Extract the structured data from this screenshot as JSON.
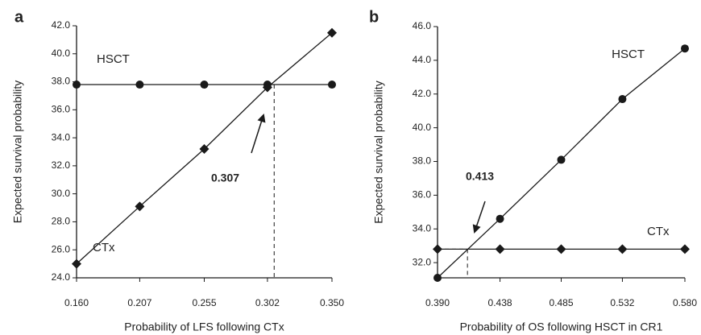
{
  "chart_data": [
    {
      "type": "line",
      "panel_label": "a",
      "x_label": "Probability of LFS following CTx",
      "y_label": "Expected survival probability",
      "x": [
        0.16,
        0.207,
        0.255,
        0.302,
        0.35
      ],
      "series": [
        {
          "name": "HSCT",
          "color": "#1a1a1a",
          "marker": "circle",
          "values": [
            37.8,
            37.8,
            37.8,
            37.8,
            37.8
          ]
        },
        {
          "name": "CTx",
          "color": "#1a1a1a",
          "marker": "diamond",
          "values": [
            25.0,
            29.1,
            33.2,
            37.6,
            41.5
          ]
        }
      ],
      "threshold": 0.307,
      "xlim": [
        0.16,
        0.35
      ],
      "xticks": [
        {
          "value": 0.16,
          "label": "0.160"
        },
        0.207,
        0.255,
        0.302,
        {
          "value": 0.35,
          "label": "0.350"
        }
      ],
      "ylim": [
        24,
        42
      ],
      "yticks": [
        {
          "value": 24,
          "label": "24.0"
        },
        {
          "value": 26,
          "label": "26.0"
        },
        {
          "value": 28,
          "label": "28.0"
        },
        {
          "value": 30,
          "label": "30.0"
        },
        {
          "value": 32,
          "label": "32.0"
        },
        {
          "value": 34,
          "label": "34.0"
        },
        {
          "value": 36,
          "label": "36.0"
        },
        {
          "value": 38,
          "label": "38.0"
        },
        {
          "value": 40,
          "label": "40.0"
        },
        {
          "value": 42,
          "label": "42.0"
        }
      ]
    },
    {
      "type": "line",
      "panel_label": "b",
      "x_label": "Probability of OS following HSCT in CR1",
      "y_label": "Expected survival probability",
      "x": [
        0.39,
        0.438,
        0.485,
        0.532,
        0.58
      ],
      "series": [
        {
          "name": "HSCT",
          "color": "#1a1a1a",
          "marker": "circle",
          "values": [
            31.1,
            34.6,
            38.1,
            41.7,
            44.7
          ]
        },
        {
          "name": "CTx",
          "color": "#1a1a1a",
          "marker": "diamond",
          "values": [
            32.8,
            32.8,
            32.8,
            32.8,
            32.8
          ]
        }
      ],
      "threshold": 0.413,
      "xlim": [
        0.39,
        0.58
      ],
      "xticks": [
        {
          "value": 0.39,
          "label": "0.390"
        },
        0.438,
        0.485,
        0.532,
        {
          "value": 0.58,
          "label": "0.580"
        }
      ],
      "ylim": [
        31.1,
        46
      ],
      "yticks": [
        {
          "value": 32,
          "label": "32.0"
        },
        {
          "value": 34,
          "label": "34.0"
        },
        {
          "value": 36,
          "label": "36.0"
        },
        {
          "value": 38,
          "label": "38.0"
        },
        {
          "value": 40,
          "label": "40.0"
        },
        {
          "value": 42,
          "label": "42.0"
        },
        {
          "value": 44,
          "label": "44.0"
        },
        {
          "value": 46,
          "label": "46.0"
        }
      ]
    }
  ]
}
